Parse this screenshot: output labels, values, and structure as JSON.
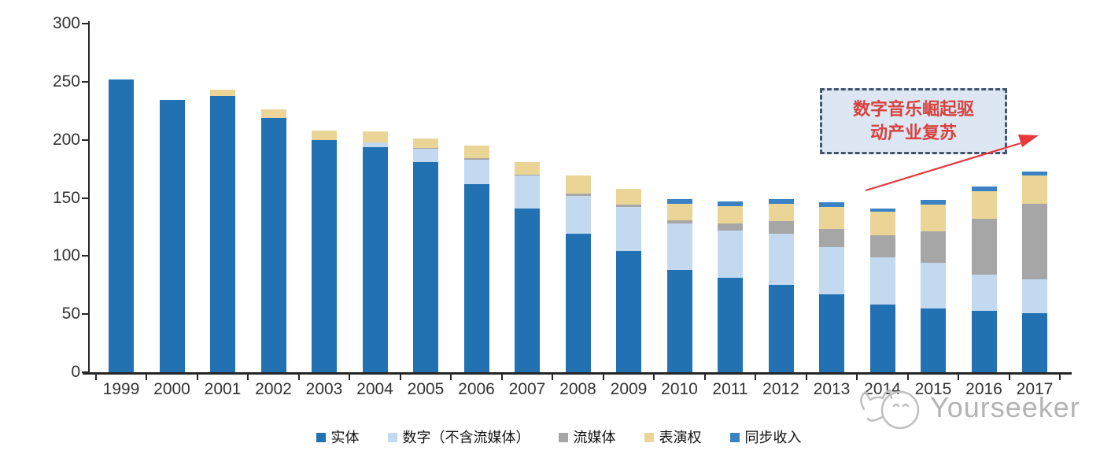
{
  "chart_data": {
    "type": "bar",
    "stacked": true,
    "title": "",
    "xlabel": "",
    "ylabel": "",
    "categories": [
      "1999",
      "2000",
      "2001",
      "2002",
      "2003",
      "2004",
      "2005",
      "2006",
      "2007",
      "2008",
      "2009",
      "2010",
      "2011",
      "2012",
      "2013",
      "2014",
      "2015",
      "2016",
      "2017"
    ],
    "series": [
      {
        "name": "实体",
        "color": "#2271B3",
        "values": [
          252,
          234,
          238,
          219,
          200,
          194,
          181,
          162,
          141,
          119,
          104,
          88,
          81,
          75,
          67,
          58,
          55,
          53,
          51
        ]
      },
      {
        "name": "数字（不含流媒体）",
        "color": "#C3D9F0",
        "values": [
          0,
          0,
          0,
          0,
          0,
          4,
          11,
          21,
          28,
          33,
          38,
          40,
          41,
          44,
          41,
          41,
          39,
          31,
          29
        ]
      },
      {
        "name": "流媒体",
        "color": "#A6A6A6",
        "values": [
          0,
          0,
          0,
          0,
          0,
          0,
          1,
          1,
          1,
          2,
          2,
          3,
          6,
          11,
          15,
          19,
          27,
          48,
          65
        ]
      },
      {
        "name": "表演权",
        "color": "#EAD597",
        "values": [
          0,
          0,
          5,
          7,
          8,
          9,
          8,
          11,
          11,
          15,
          14,
          14,
          15,
          15,
          19,
          20,
          23,
          24,
          24
        ]
      },
      {
        "name": "同步收入",
        "color": "#3B82C4",
        "values": [
          0,
          0,
          0,
          0,
          0,
          0,
          0,
          0,
          0,
          0,
          0,
          4,
          4,
          4,
          4,
          3,
          4,
          4,
          4
        ]
      }
    ],
    "totals": [
      252,
      234,
      243,
      226,
      208,
      207,
      201,
      195,
      181,
      169,
      158,
      149,
      147,
      149,
      146,
      141,
      148,
      160,
      173
    ],
    "ylim": [
      0,
      300
    ],
    "yticks": [
      0,
      50,
      100,
      150,
      200,
      250,
      300
    ],
    "grid": false,
    "legend_position": "bottom"
  },
  "annotation": {
    "line1": "数字音乐崛起驱",
    "line2": "动产业复苏",
    "text_color": "#D9413D",
    "box_fill": "#DCE7F3",
    "box_border": "#44546A",
    "arrow_color": "#E8373E"
  },
  "watermark": {
    "text": "Yourseeker",
    "color": "#b3b3b3"
  },
  "colors": {
    "axis": "#262626",
    "tick_label": "#333333",
    "background": "#ffffff"
  }
}
